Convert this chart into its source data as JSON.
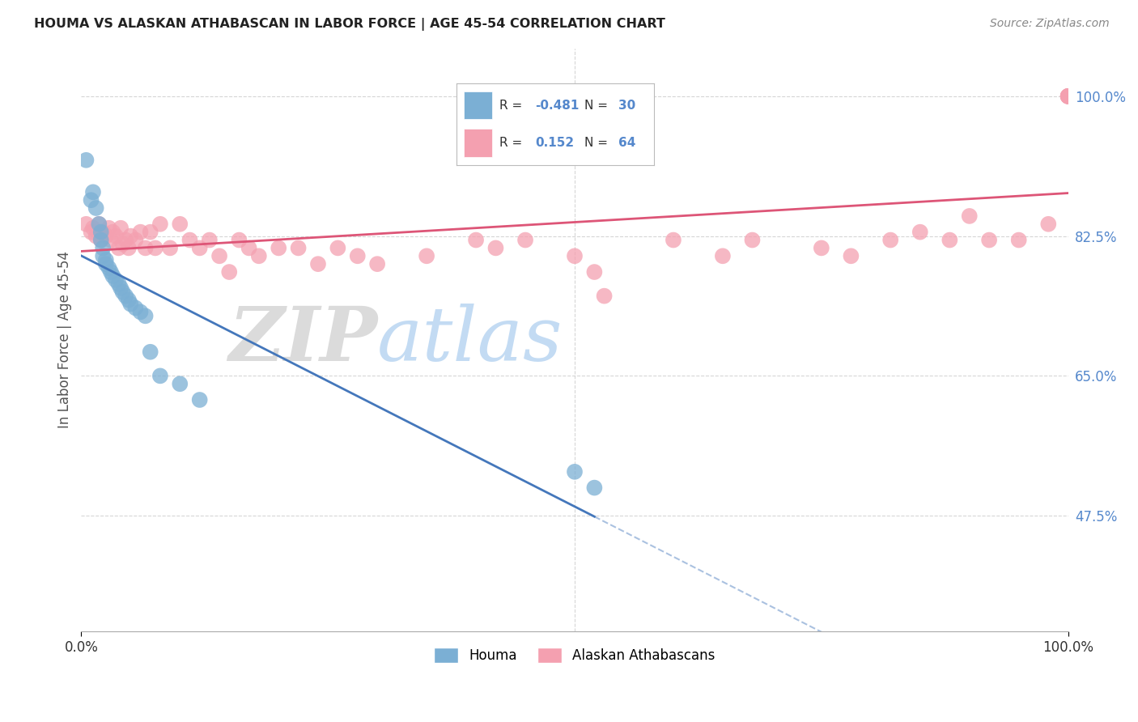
{
  "title": "HOUMA VS ALASKAN ATHABASCAN IN LABOR FORCE | AGE 45-54 CORRELATION CHART",
  "source": "Source: ZipAtlas.com",
  "ylabel": "In Labor Force | Age 45-54",
  "houma_R": -0.481,
  "houma_N": 30,
  "athabascan_R": 0.152,
  "athabascan_N": 64,
  "legend_label_houma": "Houma",
  "legend_label_athabascan": "Alaskan Athabascans",
  "houma_color": "#7BAFD4",
  "athabascan_color": "#F4A0B0",
  "houma_line_color": "#4477BB",
  "athabascan_line_color": "#DD5577",
  "label_color": "#5588CC",
  "background_color": "#FFFFFF",
  "grid_color": "#CCCCCC",
  "xlim": [
    0.0,
    1.0
  ],
  "ylim": [
    0.33,
    1.06
  ],
  "yticks": [
    0.475,
    0.65,
    0.825,
    1.0
  ],
  "ytick_labels": [
    "47.5%",
    "65.0%",
    "82.5%",
    "100.0%"
  ],
  "houma_x": [
    0.005,
    0.01,
    0.012,
    0.015,
    0.018,
    0.02,
    0.02,
    0.022,
    0.022,
    0.025,
    0.025,
    0.028,
    0.03,
    0.032,
    0.035,
    0.038,
    0.04,
    0.042,
    0.045,
    0.048,
    0.05,
    0.055,
    0.06,
    0.065,
    0.07,
    0.08,
    0.1,
    0.12,
    0.5,
    0.52
  ],
  "houma_y": [
    0.92,
    0.87,
    0.88,
    0.86,
    0.84,
    0.83,
    0.82,
    0.81,
    0.8,
    0.795,
    0.79,
    0.785,
    0.78,
    0.775,
    0.77,
    0.765,
    0.76,
    0.755,
    0.75,
    0.745,
    0.74,
    0.735,
    0.73,
    0.725,
    0.68,
    0.65,
    0.64,
    0.62,
    0.53,
    0.51
  ],
  "athabascan_x": [
    0.005,
    0.01,
    0.012,
    0.015,
    0.018,
    0.02,
    0.022,
    0.025,
    0.028,
    0.03,
    0.032,
    0.035,
    0.038,
    0.04,
    0.042,
    0.045,
    0.048,
    0.05,
    0.055,
    0.06,
    0.065,
    0.07,
    0.075,
    0.08,
    0.09,
    0.1,
    0.11,
    0.12,
    0.13,
    0.14,
    0.15,
    0.16,
    0.17,
    0.18,
    0.2,
    0.22,
    0.24,
    0.26,
    0.28,
    0.3,
    0.35,
    0.4,
    0.42,
    0.45,
    0.5,
    0.52,
    0.53,
    0.6,
    0.65,
    0.68,
    0.75,
    0.78,
    0.82,
    0.85,
    0.88,
    0.9,
    0.92,
    0.95,
    0.98,
    1.0,
    1.0,
    1.0,
    1.0,
    1.0
  ],
  "athabascan_y": [
    0.84,
    0.83,
    0.835,
    0.825,
    0.84,
    0.82,
    0.83,
    0.825,
    0.835,
    0.82,
    0.83,
    0.825,
    0.81,
    0.835,
    0.815,
    0.82,
    0.81,
    0.825,
    0.82,
    0.83,
    0.81,
    0.83,
    0.81,
    0.84,
    0.81,
    0.84,
    0.82,
    0.81,
    0.82,
    0.8,
    0.78,
    0.82,
    0.81,
    0.8,
    0.81,
    0.81,
    0.79,
    0.81,
    0.8,
    0.79,
    0.8,
    0.82,
    0.81,
    0.82,
    0.8,
    0.78,
    0.75,
    0.82,
    0.8,
    0.82,
    0.81,
    0.8,
    0.82,
    0.83,
    0.82,
    0.85,
    0.82,
    0.82,
    0.84,
    1.0,
    1.0,
    1.0,
    1.0,
    1.0
  ]
}
